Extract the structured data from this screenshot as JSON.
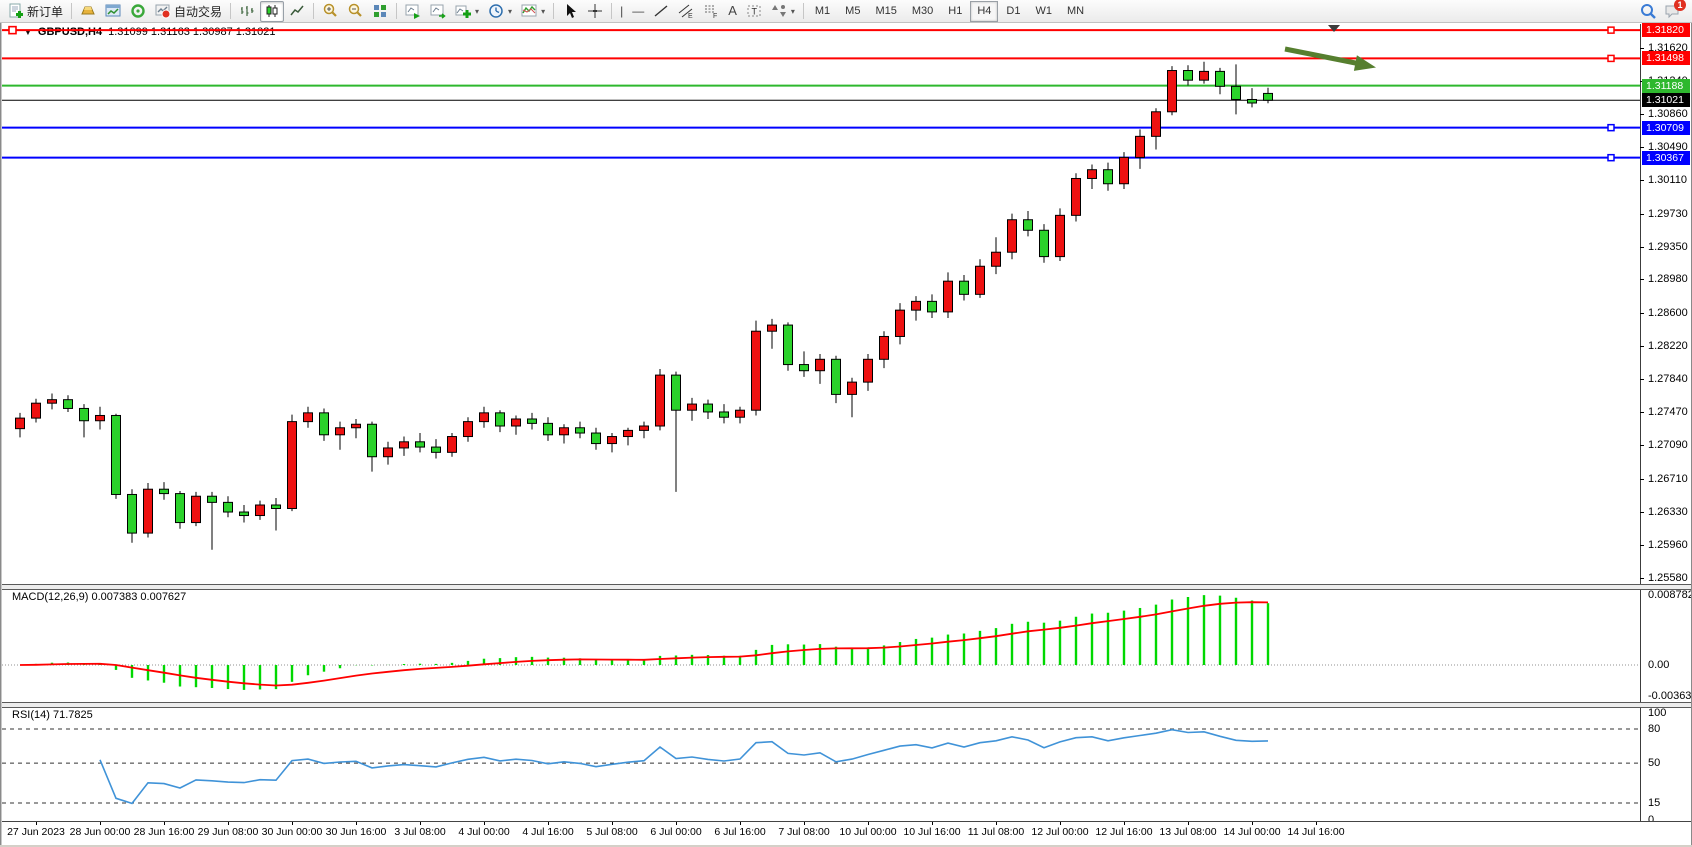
{
  "toolbar": {
    "new_order_label": "新订单",
    "auto_trading_label": "自动交易",
    "timeframes": [
      "M1",
      "M5",
      "M15",
      "M30",
      "H1",
      "H4",
      "D1",
      "W1",
      "MN"
    ],
    "active_timeframe": "H4",
    "notification_count": "1"
  },
  "chart_data": {
    "type": "candlestick",
    "symbol": "GBPUSD",
    "timeframe": "H4",
    "title_symbol": "GBPUSD,H4",
    "title_ohlc": "1.31099 1.31163 1.30987 1.31021",
    "ohlc_display": {
      "open": "1.31099",
      "high": "1.31163",
      "low": "1.30987",
      "close": "1.31021"
    },
    "y_range": [
      1.2551,
      1.3189
    ],
    "y_axis_ticks": [
      "1.31620",
      "1.31240",
      "1.30860",
      "1.30490",
      "1.30110",
      "1.29730",
      "1.29350",
      "1.28980",
      "1.28600",
      "1.28220",
      "1.27840",
      "1.27470",
      "1.27090",
      "1.26710",
      "1.26330",
      "1.25960",
      "1.25580"
    ],
    "x_labels": [
      "27 Jun 2023",
      "28 Jun 00:00",
      "28 Jun 16:00",
      "29 Jun 08:00",
      "30 Jun 00:00",
      "30 Jun 16:00",
      "3 Jul 08:00",
      "4 Jul 00:00",
      "4 Jul 16:00",
      "5 Jul 08:00",
      "6 Jul 00:00",
      "6 Jul 16:00",
      "7 Jul 08:00",
      "10 Jul 00:00",
      "10 Jul 16:00",
      "11 Jul 08:00",
      "12 Jul 00:00",
      "12 Jul 16:00",
      "13 Jul 08:00",
      "14 Jul 00:00",
      "14 Jul 16:00"
    ],
    "bars_per_label": 4,
    "first_label_bar_index": 1,
    "colors": {
      "up_body": "#ee1111",
      "down_body": "#2bd22b",
      "wick": "#000000",
      "macd_histogram": "#00d800",
      "macd_signal": "#ff0000",
      "rsi_line": "#4093d8"
    },
    "levels": [
      {
        "price": 1.3182,
        "label": "1.31820",
        "color": "#ff0000",
        "handle": true,
        "style": "line"
      },
      {
        "price": 1.31498,
        "label": "1.31498",
        "color": "#ff0000",
        "handle": true,
        "style": "line"
      },
      {
        "price": 1.31188,
        "label": "1.31188",
        "color": "#2eb82e",
        "handle": false,
        "style": "line"
      },
      {
        "price": 1.31021,
        "label": "1.31021",
        "color": "#000000",
        "handle": false,
        "style": "current"
      },
      {
        "price": 1.30709,
        "label": "1.30709",
        "color": "#0000ff",
        "handle": true,
        "style": "line"
      },
      {
        "price": 1.30367,
        "label": "1.30367",
        "color": "#0000ff",
        "handle": true,
        "style": "line"
      }
    ],
    "annotations": [
      {
        "type": "arrow",
        "direction": "down-right",
        "color": "#567f2f"
      }
    ],
    "candles": [
      [
        1.2728,
        1.2746,
        1.2718,
        1.274
      ],
      [
        1.274,
        1.2762,
        1.2735,
        1.2757
      ],
      [
        1.2757,
        1.2768,
        1.275,
        1.2761
      ],
      [
        1.2761,
        1.2766,
        1.2747,
        1.2751
      ],
      [
        1.2751,
        1.2756,
        1.2718,
        1.2737
      ],
      [
        1.2737,
        1.2753,
        1.2727,
        1.2743
      ],
      [
        1.2743,
        1.2745,
        1.2648,
        1.2653
      ],
      [
        1.2653,
        1.2659,
        1.2598,
        1.2609
      ],
      [
        1.2609,
        1.2666,
        1.2604,
        1.2659
      ],
      [
        1.2659,
        1.2667,
        1.2647,
        1.2654
      ],
      [
        1.2654,
        1.2657,
        1.2614,
        1.2621
      ],
      [
        1.2621,
        1.2656,
        1.2617,
        1.2651
      ],
      [
        1.2651,
        1.2656,
        1.259,
        1.2644
      ],
      [
        1.2644,
        1.2651,
        1.2627,
        1.2633
      ],
      [
        1.2633,
        1.2641,
        1.2621,
        1.2629
      ],
      [
        1.2629,
        1.2646,
        1.2624,
        1.2641
      ],
      [
        1.2641,
        1.2649,
        1.2612,
        1.2637
      ],
      [
        1.2637,
        1.2744,
        1.2634,
        1.2736
      ],
      [
        1.2736,
        1.2753,
        1.2729,
        1.2746
      ],
      [
        1.2746,
        1.2751,
        1.2714,
        1.2721
      ],
      [
        1.2721,
        1.2736,
        1.2704,
        1.2729
      ],
      [
        1.2729,
        1.2739,
        1.2717,
        1.2733
      ],
      [
        1.2733,
        1.2736,
        1.2679,
        1.2696
      ],
      [
        1.2696,
        1.2713,
        1.2687,
        1.2706
      ],
      [
        1.2706,
        1.2719,
        1.2697,
        1.2713
      ],
      [
        1.2713,
        1.2723,
        1.2701,
        1.2707
      ],
      [
        1.2707,
        1.2716,
        1.2694,
        1.2701
      ],
      [
        1.2701,
        1.2723,
        1.2696,
        1.2719
      ],
      [
        1.2719,
        1.2741,
        1.2713,
        1.2736
      ],
      [
        1.2736,
        1.2753,
        1.2729,
        1.2746
      ],
      [
        1.2746,
        1.2749,
        1.2724,
        1.2731
      ],
      [
        1.2731,
        1.2743,
        1.2721,
        1.2739
      ],
      [
        1.2739,
        1.2746,
        1.2727,
        1.2734
      ],
      [
        1.2734,
        1.2741,
        1.2714,
        1.2721
      ],
      [
        1.2721,
        1.2733,
        1.2711,
        1.2729
      ],
      [
        1.2729,
        1.2736,
        1.2717,
        1.2723
      ],
      [
        1.2723,
        1.2729,
        1.2704,
        1.2711
      ],
      [
        1.2711,
        1.2723,
        1.2701,
        1.2719
      ],
      [
        1.2719,
        1.2729,
        1.2709,
        1.2726
      ],
      [
        1.2726,
        1.2736,
        1.2717,
        1.2731
      ],
      [
        1.2731,
        1.2796,
        1.2726,
        1.2789
      ],
      [
        1.2789,
        1.2793,
        1.2656,
        1.2749
      ],
      [
        1.2749,
        1.2763,
        1.2737,
        1.2756
      ],
      [
        1.2756,
        1.2761,
        1.2739,
        1.2747
      ],
      [
        1.2747,
        1.2756,
        1.2734,
        1.2741
      ],
      [
        1.2741,
        1.2753,
        1.2734,
        1.2749
      ],
      [
        1.2749,
        1.2851,
        1.2743,
        1.2839
      ],
      [
        1.2839,
        1.2853,
        1.2819,
        1.2846
      ],
      [
        1.2846,
        1.2849,
        1.2794,
        1.2801
      ],
      [
        1.2801,
        1.2816,
        1.2787,
        1.2794
      ],
      [
        1.2794,
        1.2813,
        1.2779,
        1.2807
      ],
      [
        1.2807,
        1.2811,
        1.2757,
        1.2767
      ],
      [
        1.2767,
        1.2786,
        1.2741,
        1.2781
      ],
      [
        1.2781,
        1.2813,
        1.2771,
        1.2807
      ],
      [
        1.2807,
        1.2839,
        1.2797,
        1.2833
      ],
      [
        1.2833,
        1.2871,
        1.2824,
        1.2863
      ],
      [
        1.2863,
        1.2879,
        1.2851,
        1.2873
      ],
      [
        1.2873,
        1.2881,
        1.2854,
        1.2861
      ],
      [
        1.2861,
        1.2906,
        1.2854,
        1.2896
      ],
      [
        1.2896,
        1.2903,
        1.2874,
        1.2881
      ],
      [
        1.2881,
        1.2921,
        1.2877,
        1.2913
      ],
      [
        1.2913,
        1.2946,
        1.2904,
        1.2929
      ],
      [
        1.2929,
        1.2973,
        1.2921,
        1.2966
      ],
      [
        1.2966,
        1.2976,
        1.2947,
        1.2954
      ],
      [
        1.2954,
        1.2961,
        1.2917,
        1.2924
      ],
      [
        1.2924,
        1.2979,
        1.2919,
        1.2971
      ],
      [
        1.2971,
        1.3019,
        1.2964,
        1.3013
      ],
      [
        1.3013,
        1.3029,
        1.3001,
        1.3023
      ],
      [
        1.3023,
        1.3031,
        1.2999,
        1.3007
      ],
      [
        1.3007,
        1.3043,
        1.3001,
        1.3037
      ],
      [
        1.3037,
        1.3069,
        1.3024,
        1.3061
      ],
      [
        1.3061,
        1.3093,
        1.3046,
        1.3089
      ],
      [
        1.3089,
        1.3141,
        1.3085,
        1.3136
      ],
      [
        1.3136,
        1.3142,
        1.3119,
        1.3125
      ],
      [
        1.3125,
        1.3146,
        1.3121,
        1.3135
      ],
      [
        1.3135,
        1.3139,
        1.3109,
        1.3118
      ],
      [
        1.3118,
        1.3143,
        1.3086,
        1.3103
      ],
      [
        1.3103,
        1.3116,
        1.3094,
        1.3099
      ],
      [
        1.31099,
        1.31163,
        1.30987,
        1.31021
      ]
    ],
    "indicators": [
      {
        "name": "MACD",
        "params": "12,26,9",
        "label": "MACD(12,26,9) 0.007383 0.007627",
        "values_text": [
          "0.007383",
          "0.007627"
        ],
        "axis": [
          {
            "label": "0.008782",
            "value": 0.008782
          },
          {
            "label": "0.00",
            "value": 0
          },
          {
            "label": "-0.003637",
            "value": -0.003637
          }
        ]
      },
      {
        "name": "RSI",
        "params": "14",
        "label": "RSI(14) 71.7825",
        "value_text": "71.7825",
        "levels": [
          80,
          50,
          15
        ],
        "axis": [
          {
            "label": "100",
            "value": 100
          },
          {
            "label": "80",
            "value": 80
          },
          {
            "label": "50",
            "value": 50
          },
          {
            "label": "15",
            "value": 15
          },
          {
            "label": "0",
            "value": 0
          }
        ]
      }
    ]
  }
}
